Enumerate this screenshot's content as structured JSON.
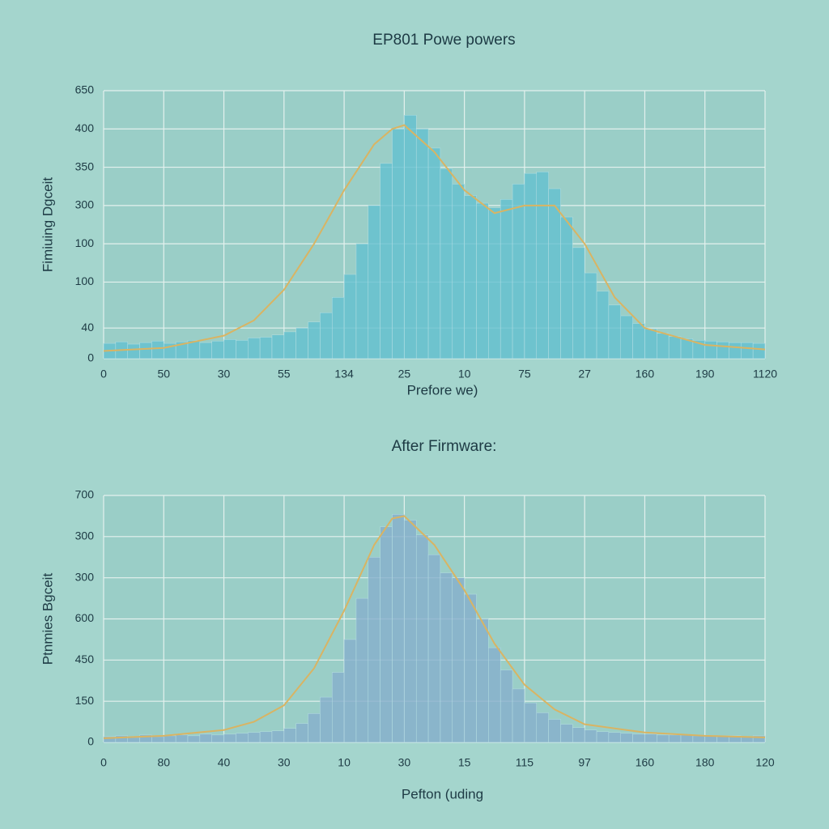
{
  "chart_data": [
    {
      "type": "histogram",
      "title": "EP801 Powe powers",
      "x_label": "Prefore we)",
      "y_label": "Fimiuing Dgceit",
      "bins": [
        0,
        2,
        4,
        6,
        8,
        10,
        12,
        14,
        16,
        18,
        20,
        22,
        24,
        26,
        28,
        30,
        32,
        34,
        36,
        38,
        40,
        42,
        44,
        46,
        48,
        50,
        52,
        54,
        56,
        58,
        60,
        62,
        64,
        66,
        68,
        70,
        72,
        74,
        76,
        78,
        80,
        82,
        84,
        86,
        88,
        90,
        92,
        94,
        96,
        98,
        100,
        102,
        104,
        106,
        108,
        110
      ],
      "counts": [
        20,
        22,
        19,
        21,
        23,
        20,
        22,
        24,
        21,
        23,
        25,
        24,
        27,
        28,
        31,
        35,
        40,
        48,
        60,
        80,
        110,
        150,
        200,
        255,
        300,
        318,
        300,
        275,
        248,
        228,
        213,
        203,
        197,
        208,
        228,
        242,
        244,
        222,
        185,
        145,
        112,
        88,
        70,
        56,
        46,
        39,
        33,
        29,
        26,
        24,
        23,
        22,
        21,
        21,
        20
      ],
      "color": "#63c0cf",
      "fit": {
        "x": [
          0,
          10,
          20,
          25,
          30,
          35,
          40,
          45,
          48,
          50,
          55,
          60,
          65,
          70,
          75,
          80,
          85,
          90,
          100,
          110
        ],
        "values": [
          10,
          14,
          30,
          50,
          90,
          150,
          220,
          280,
          300,
          305,
          270,
          220,
          190,
          200,
          200,
          150,
          80,
          40,
          18,
          12
        ],
        "color": "#d9b463"
      },
      "xlim": [
        0,
        110
      ],
      "xticks": [
        0,
        {
          "value": 10,
          "label": "50"
        },
        {
          "value": 20,
          "label": "30"
        },
        {
          "value": 30,
          "label": "55"
        },
        {
          "value": 40,
          "label": "134"
        },
        {
          "value": 50,
          "label": "25"
        },
        {
          "value": 60,
          "label": "10"
        },
        {
          "value": 70,
          "label": "75"
        },
        {
          "value": 80,
          "label": "27"
        },
        {
          "value": 90,
          "label": "160"
        },
        {
          "value": 100,
          "label": "190"
        },
        {
          "value": 110,
          "label": "1120"
        }
      ],
      "ylim": [
        0,
        350
      ],
      "yticks": [
        0,
        40,
        100,
        {
          "value": 150,
          "label": "100"
        },
        {
          "value": 200,
          "label": "300"
        },
        {
          "value": 250,
          "label": "350"
        },
        {
          "value": 300,
          "label": "400"
        },
        {
          "value": 350,
          "label": "650"
        }
      ],
      "grid": true
    },
    {
      "type": "histogram",
      "title": "After Firmware:",
      "x_label": "Pefton (uding",
      "y_label": "Ptnmies Bgceit",
      "bins": [
        0,
        2,
        4,
        6,
        8,
        10,
        12,
        14,
        16,
        18,
        20,
        22,
        24,
        26,
        28,
        30,
        32,
        34,
        36,
        38,
        40,
        42,
        44,
        46,
        48,
        50,
        52,
        54,
        56,
        58,
        60,
        62,
        64,
        66,
        68,
        70,
        72,
        74,
        76,
        78,
        80,
        82,
        84,
        86,
        88,
        90,
        92,
        94,
        96,
        98,
        100,
        102,
        104,
        106,
        108,
        110
      ],
      "counts": [
        7,
        8,
        6,
        9,
        7,
        8,
        9,
        8,
        10,
        9,
        10,
        11,
        12,
        13,
        14,
        17,
        23,
        35,
        55,
        85,
        125,
        175,
        225,
        262,
        277,
        270,
        252,
        228,
        206,
        200,
        180,
        150,
        115,
        88,
        65,
        48,
        36,
        28,
        22,
        18,
        15,
        13,
        12,
        11,
        10,
        10,
        9,
        9,
        9,
        8,
        8,
        8,
        8,
        7,
        8
      ],
      "color": "#86afcc",
      "fit": {
        "x": [
          0,
          10,
          20,
          25,
          30,
          35,
          40,
          45,
          48,
          50,
          55,
          60,
          65,
          70,
          75,
          80,
          90,
          100,
          110
        ],
        "values": [
          5,
          8,
          15,
          25,
          45,
          90,
          160,
          240,
          272,
          275,
          240,
          185,
          120,
          70,
          40,
          22,
          12,
          8,
          6
        ],
        "color": "#d9b463"
      },
      "xlim": [
        0,
        110
      ],
      "xticks": [
        0,
        {
          "value": 10,
          "label": "80"
        },
        {
          "value": 20,
          "label": "40"
        },
        {
          "value": 30,
          "label": "30"
        },
        {
          "value": 40,
          "label": "10"
        },
        {
          "value": 50,
          "label": "30"
        },
        {
          "value": 60,
          "label": "15"
        },
        {
          "value": 70,
          "label": "115"
        },
        {
          "value": 80,
          "label": "97"
        },
        {
          "value": 90,
          "label": "160"
        },
        {
          "value": 100,
          "label": "180"
        },
        {
          "value": 110,
          "label": "120"
        }
      ],
      "ylim": [
        0,
        300
      ],
      "yticks": [
        0,
        {
          "value": 50,
          "label": "150"
        },
        {
          "value": 100,
          "label": "450"
        },
        {
          "value": 150,
          "label": "600"
        },
        {
          "value": 200,
          "label": "300"
        },
        {
          "value": 250,
          "label": "300"
        },
        {
          "value": 300,
          "label": "700"
        }
      ],
      "grid": true
    }
  ]
}
